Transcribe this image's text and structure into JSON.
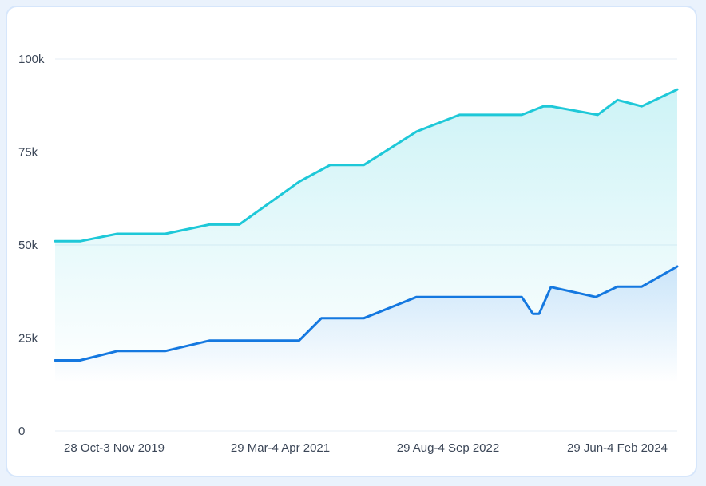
{
  "chart_data": {
    "type": "area",
    "x_tick_labels": [
      "28 Oct-3 Nov 2019",
      "29 Mar-4 Apr 2021",
      "29 Aug-4 Sep 2022",
      "29 Jun-4 Feb 2024"
    ],
    "y_tick_labels": [
      "0",
      "25k",
      "50k",
      "75k",
      "100k"
    ],
    "yticks": [
      0,
      25000,
      50000,
      75000,
      100000
    ],
    "ylim": [
      0,
      100000
    ],
    "xlim": [
      0,
      100
    ],
    "grid": true,
    "legend": "none",
    "series": [
      {
        "color": "#1ec8d8",
        "x": [
          0,
          4,
          10,
          17.7,
          24.8,
          29.6,
          39.2,
          44.2,
          49.6,
          58.1,
          65,
          75,
          78.5,
          79.7,
          87.2,
          90.4,
          94.3,
          100
        ],
        "values": [
          51000,
          51000,
          53000,
          53000,
          55500,
          55500,
          67000,
          71500,
          71500,
          80500,
          85000,
          85000,
          87300,
          87300,
          85000,
          89000,
          87300,
          91800
        ]
      },
      {
        "color": "#1478e0",
        "x": [
          0,
          4,
          10,
          17.7,
          24.8,
          39.2,
          42.8,
          49.6,
          58.1,
          65,
          75,
          76.8,
          77.8,
          79.7,
          86.9,
          90.4,
          94.3,
          100
        ],
        "values": [
          19000,
          19000,
          21500,
          21500,
          24300,
          24300,
          30300,
          30300,
          36000,
          36000,
          36000,
          31500,
          31500,
          38700,
          36000,
          38800,
          38800,
          44200
        ]
      }
    ]
  }
}
